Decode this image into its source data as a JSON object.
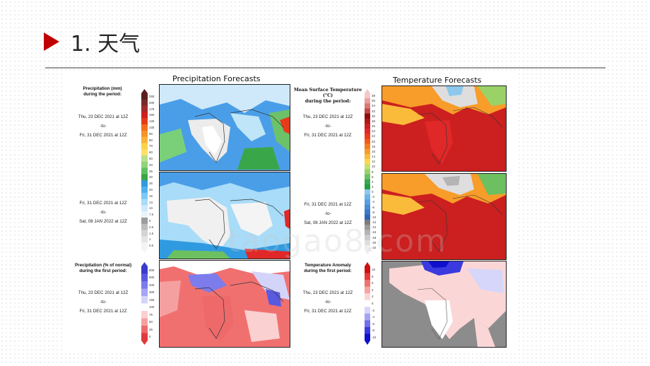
{
  "slide": {
    "title": "1. 天气"
  },
  "watermark": "taogao8.com",
  "precip": {
    "title": "Precipitation Forecasts",
    "legend_head": "Precipitation (mm)\nduring the period:",
    "period1": "Thu, 23 DEC 2021 at 12Z\n-to-\nFri, 31 DEC 2021 at 12Z",
    "period2": "Fri, 31 DEC 2021 at 12Z\n-to-\nSat, 08 JAN 2022 at 12Z",
    "ticks": [
      "250",
      "200",
      "175",
      "150",
      "125",
      "100",
      "90",
      "80",
      "70",
      "60",
      "50",
      "40",
      "35",
      "30",
      "25",
      "20",
      "16",
      "13",
      "10",
      "7.5",
      "5",
      "2.5",
      "1.5",
      "1",
      "0.5"
    ],
    "colors": [
      "#5a1e1e",
      "#7a2a2a",
      "#a52a2a",
      "#cc2222",
      "#e63a1a",
      "#f26d1c",
      "#f5942a",
      "#f8b33a",
      "#fbd34a",
      "#fde068",
      "#b8e08a",
      "#8ed47a",
      "#5fc060",
      "#3aa64a",
      "#2f9ae0",
      "#4fb0f0",
      "#7cc8f5",
      "#a8dcf8",
      "#cfeafb",
      "#e8f4fc",
      "#9c9c9c",
      "#bdbdbd",
      "#d4d4d4",
      "#e6e6e6",
      "#f4f4f4"
    ]
  },
  "precip_normal": {
    "legend_head": "Precipitation (% of normal)\nduring the first period:",
    "period": "Thu, 23 DEC 2021 at 12Z\n-to-\nFri, 31 DEC 2021 at 12Z",
    "ticks": [
      "800",
      "600",
      "400",
      "300",
      "150",
      "100",
      "75",
      "50",
      "25",
      "0"
    ],
    "colors": [
      "#3a3acf",
      "#5a5ae0",
      "#7c7cec",
      "#a6a6f4",
      "#d4d4fb",
      "#ffffff",
      "#fbd0d0",
      "#f5a0a0",
      "#ee6a6a",
      "#e03a3a"
    ]
  },
  "temp": {
    "title": "Temperature Forecasts",
    "legend_head": "Mean Surface Temperature (°C)\nduring the period:",
    "period1": "Thu, 23 DEC 2021 at 12Z\n-to-\nFri, 31 DEC 2021 at 12Z",
    "period2": "Fri, 31 DEC 2021 at 12Z\n-to-\nSat, 08 JAN 2022 at 12Z",
    "ticks": [
      "38",
      "36",
      "34",
      "32",
      "30",
      "28",
      "26",
      "24",
      "22",
      "20",
      "18",
      "16",
      "14",
      "12",
      "10",
      "8",
      "6",
      "4",
      "2",
      "0",
      "-2",
      "-4",
      "-6",
      "-8",
      "-10",
      "-12",
      "-14",
      "-16",
      "-18",
      "-20",
      "-22"
    ],
    "colors": [
      "#f4c8c8",
      "#eaa0a0",
      "#d87878",
      "#c04848",
      "#8a1010",
      "#b01818",
      "#cc1f1f",
      "#e02828",
      "#ef3a1e",
      "#f25a1a",
      "#f57c1e",
      "#f89c2a",
      "#fbbb3a",
      "#fdd84a",
      "#c6e070",
      "#9ad268",
      "#6cc060",
      "#3aa84e",
      "#22a040",
      "#8ec8ec",
      "#6cb4e8",
      "#5aa0e0",
      "#4a8cd4",
      "#3a78c8",
      "#3066b8",
      "#7c7c7c",
      "#9c9c9c",
      "#b4b4b4",
      "#cccccc",
      "#dedede",
      "#eeeeee"
    ]
  },
  "temp_anom": {
    "legend_head": "Temperature Anomaly\nduring the first period:",
    "period": "Thu, 23 DEC 2021 at 12Z\n-to-\nFri, 31 DEC 2021 at 12Z",
    "ticks": [
      "10",
      "8",
      "6",
      "4",
      "2",
      "0",
      "-2",
      "-4",
      "-6",
      "-8",
      "-10"
    ],
    "colors": [
      "#cc1010",
      "#e63a3a",
      "#f07070",
      "#f6a4a4",
      "#fbd6d6",
      "#ffffff",
      "#d6d6fb",
      "#a4a4f4",
      "#7070ec",
      "#3a3ae0",
      "#1010cc"
    ]
  }
}
